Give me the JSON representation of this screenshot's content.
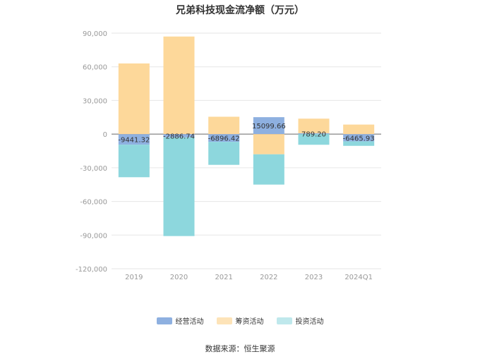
{
  "title": "兄弟科技现金流净额（万元）",
  "source": "数据来源：恒生聚源",
  "colors": {
    "operating": "#8eb0e0",
    "financing": "#fdd89a",
    "investing": "#8dd7dd",
    "axis_text": "#999999",
    "grid": "#e6e6e6",
    "zero_line": "#666666"
  },
  "chart_data": {
    "type": "bar",
    "stacked": true,
    "title": "兄弟科技现金流净额（万元）",
    "categories": [
      "2019",
      "2020",
      "2021",
      "2022",
      "2023",
      "2024Q1"
    ],
    "y_ticks": [
      "90,000",
      "60,000",
      "30,000",
      "0",
      "-30,000",
      "-60,000",
      "-90,000",
      "-120,000"
    ],
    "ylim": [
      -120000,
      90000
    ],
    "series": [
      {
        "name": "经营活动",
        "color": "#8eb0e0",
        "values": [
          -9441.32,
          -2886.74,
          -6896.42,
          15099.66,
          789.2,
          -6465.93
        ],
        "labels": [
          "-9441.32",
          "-2886.74",
          "-6896.42",
          "15099.66",
          "789.20",
          "-6465.93"
        ]
      },
      {
        "name": "筹资活动",
        "color": "#fdd89a",
        "values": [
          63000,
          87000,
          15500,
          -18000,
          13000,
          8500
        ]
      },
      {
        "name": "投资活动",
        "color": "#8dd7dd",
        "values": [
          -29000,
          -88000,
          -20500,
          -27000,
          -9500,
          -4000
        ]
      }
    ],
    "legend_position": "bottom",
    "grid": true
  }
}
